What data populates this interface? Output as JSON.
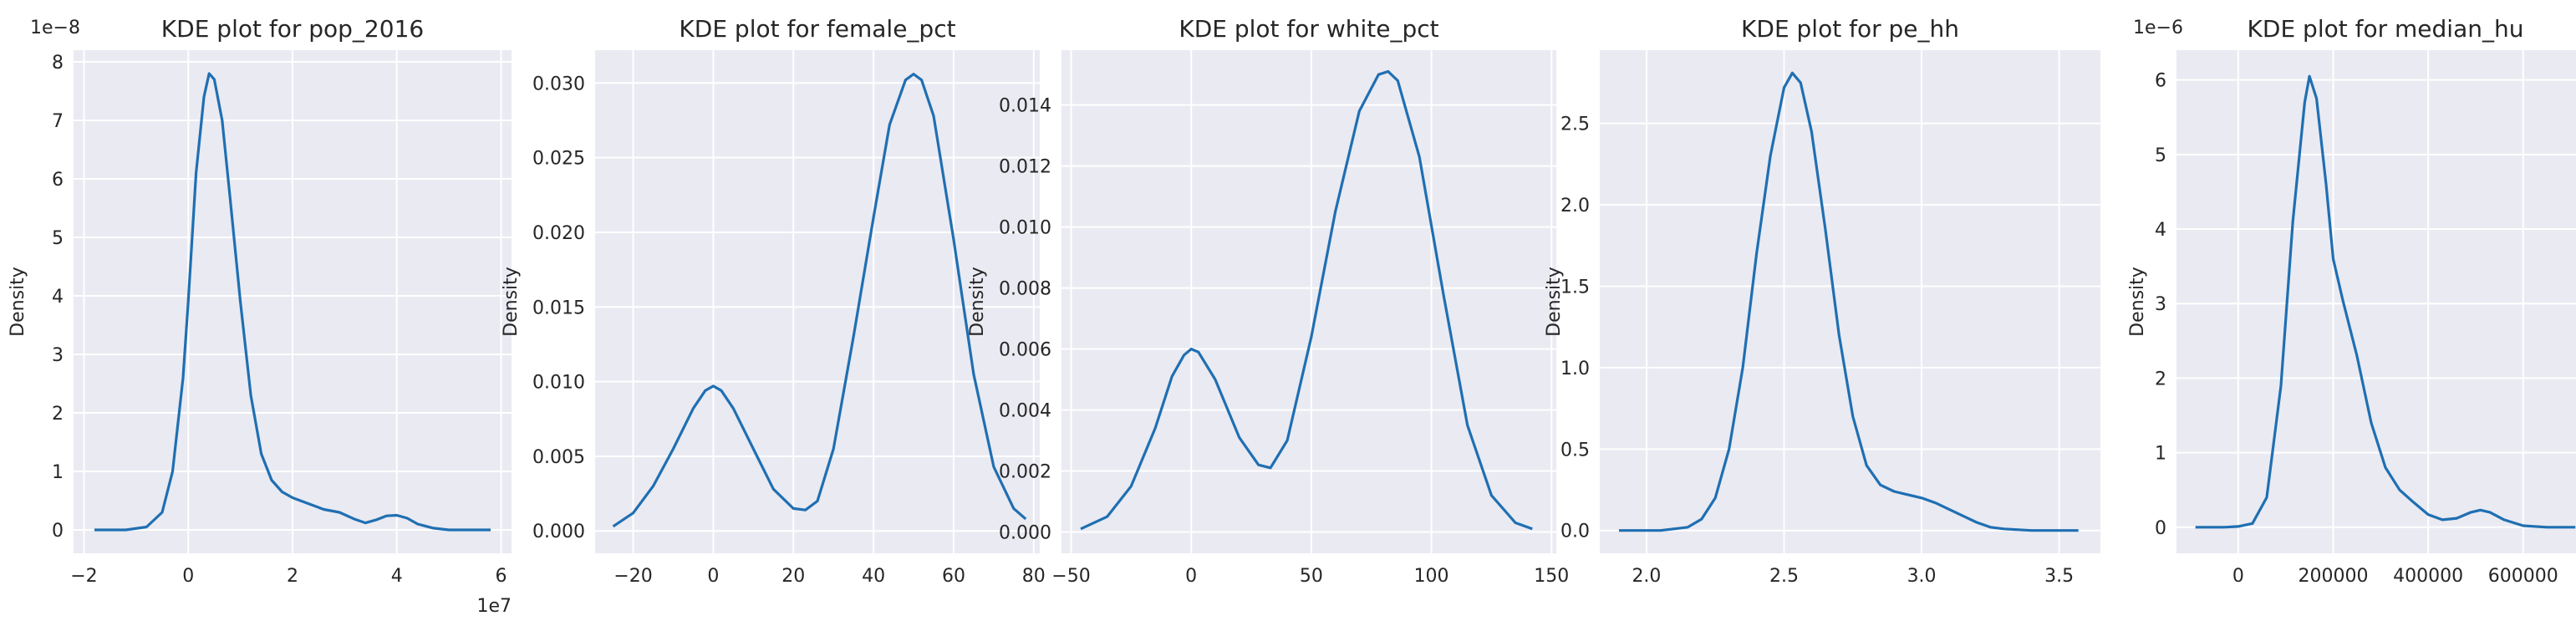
{
  "chart_data": [
    {
      "type": "line",
      "title": "KDE plot for pop_2016",
      "xlabel": "",
      "ylabel": "Density",
      "x_multiplier": "1e7",
      "y_multiplier": "1e−8",
      "xlim": [
        -2.2,
        6.2
      ],
      "ylim": [
        -0.4,
        8.2
      ],
      "xticks": [
        -2,
        0,
        2,
        4,
        6
      ],
      "xtick_labels": [
        "−2",
        "0",
        "2",
        "4",
        "6"
      ],
      "yticks": [
        0,
        1,
        2,
        3,
        4,
        5,
        6,
        7,
        8
      ],
      "ytick_labels": [
        "0",
        "1",
        "2",
        "3",
        "4",
        "5",
        "6",
        "7",
        "8"
      ],
      "grid": true,
      "series": [
        {
          "x": [
            -1.8,
            -1.2,
            -0.8,
            -0.5,
            -0.3,
            -0.1,
            0.0,
            0.15,
            0.3,
            0.4,
            0.5,
            0.65,
            0.8,
            1.0,
            1.2,
            1.4,
            1.6,
            1.8,
            2.0,
            2.3,
            2.6,
            2.9,
            3.2,
            3.4,
            3.6,
            3.8,
            4.0,
            4.2,
            4.4,
            4.7,
            5.0,
            5.4,
            5.8
          ],
          "y": [
            0.0,
            0.0,
            0.05,
            0.3,
            1.0,
            2.6,
            3.9,
            6.1,
            7.4,
            7.8,
            7.7,
            7.0,
            5.7,
            3.9,
            2.3,
            1.3,
            0.85,
            0.65,
            0.55,
            0.45,
            0.35,
            0.3,
            0.18,
            0.12,
            0.17,
            0.24,
            0.25,
            0.2,
            0.1,
            0.03,
            0.0,
            0.0,
            0.0
          ]
        }
      ]
    },
    {
      "type": "line",
      "title": "KDE plot for female_pct",
      "xlabel": "",
      "ylabel": "Density",
      "xlim": [
        -29.5,
        81.5
      ],
      "ylim": [
        -0.0015,
        0.0322
      ],
      "xticks": [
        -20,
        0,
        20,
        40,
        60,
        80
      ],
      "xtick_labels": [
        "−20",
        "0",
        "20",
        "40",
        "60",
        "80"
      ],
      "yticks": [
        0,
        0.005,
        0.01,
        0.015,
        0.02,
        0.025,
        0.03
      ],
      "ytick_labels": [
        "0.000",
        "0.005",
        "0.010",
        "0.015",
        "0.020",
        "0.025",
        "0.030"
      ],
      "grid": true,
      "series": [
        {
          "x": [
            -25,
            -20,
            -15,
            -10,
            -5,
            -2,
            0,
            2,
            5,
            10,
            15,
            20,
            23,
            26,
            30,
            35,
            40,
            44,
            48,
            50,
            52,
            55,
            60,
            65,
            70,
            75,
            78
          ],
          "y": [
            0.0003,
            0.0012,
            0.003,
            0.0055,
            0.0082,
            0.0094,
            0.0097,
            0.0094,
            0.0082,
            0.0055,
            0.0028,
            0.0015,
            0.0014,
            0.002,
            0.0055,
            0.013,
            0.021,
            0.0272,
            0.0302,
            0.0306,
            0.0302,
            0.0278,
            0.0195,
            0.0105,
            0.0043,
            0.0015,
            0.0008
          ]
        }
      ]
    },
    {
      "type": "line",
      "title": "KDE plot for white_pct",
      "xlabel": "",
      "ylabel": "Density",
      "xlim": [
        -54,
        152
      ],
      "ylim": [
        -0.0007,
        0.0158
      ],
      "xticks": [
        -50,
        0,
        50,
        100,
        150
      ],
      "xtick_labels": [
        "−50",
        "0",
        "50",
        "100",
        "150"
      ],
      "yticks": [
        0,
        0.002,
        0.004,
        0.006,
        0.008,
        0.01,
        0.012,
        0.014
      ],
      "ytick_labels": [
        "0.000",
        "0.002",
        "0.004",
        "0.006",
        "0.008",
        "0.010",
        "0.012",
        "0.014"
      ],
      "grid": true,
      "series": [
        {
          "x": [
            -46,
            -35,
            -25,
            -15,
            -8,
            -3,
            0,
            3,
            10,
            20,
            28,
            33,
            40,
            50,
            60,
            70,
            78,
            82,
            86,
            95,
            105,
            115,
            125,
            135,
            142
          ],
          "y": [
            0.0001,
            0.0005,
            0.0015,
            0.0034,
            0.0051,
            0.0058,
            0.006,
            0.0059,
            0.005,
            0.0031,
            0.0022,
            0.0021,
            0.003,
            0.0064,
            0.0105,
            0.0138,
            0.015,
            0.0151,
            0.0148,
            0.0123,
            0.0078,
            0.0035,
            0.0012,
            0.0003,
            0.0001
          ]
        }
      ]
    },
    {
      "type": "line",
      "title": "KDE plot for pe_hh",
      "xlabel": "",
      "ylabel": "Density",
      "xlim": [
        1.83,
        3.65
      ],
      "ylim": [
        -0.14,
        2.95
      ],
      "xticks": [
        2.0,
        2.5,
        3.0,
        3.5
      ],
      "xtick_labels": [
        "2.0",
        "2.5",
        "3.0",
        "3.5"
      ],
      "yticks": [
        0,
        0.5,
        1.0,
        1.5,
        2.0,
        2.5
      ],
      "ytick_labels": [
        "0.0",
        "0.5",
        "1.0",
        "1.5",
        "2.0",
        "2.5"
      ],
      "grid": true,
      "series": [
        {
          "x": [
            1.9,
            2.05,
            2.15,
            2.2,
            2.25,
            2.3,
            2.35,
            2.4,
            2.45,
            2.5,
            2.53,
            2.56,
            2.6,
            2.65,
            2.7,
            2.75,
            2.8,
            2.85,
            2.9,
            2.95,
            3.0,
            3.05,
            3.1,
            3.15,
            3.2,
            3.25,
            3.3,
            3.4,
            3.57
          ],
          "y": [
            0.0,
            0.0,
            0.02,
            0.07,
            0.2,
            0.5,
            1.0,
            1.7,
            2.3,
            2.72,
            2.81,
            2.75,
            2.45,
            1.85,
            1.2,
            0.7,
            0.4,
            0.28,
            0.24,
            0.22,
            0.2,
            0.17,
            0.13,
            0.09,
            0.05,
            0.02,
            0.01,
            0.0,
            0.0
          ]
        }
      ]
    },
    {
      "type": "line",
      "title": "KDE plot for median_hu",
      "xlabel": "",
      "ylabel": "Density",
      "y_multiplier": "1e−6",
      "xlim": [
        -130000,
        750000
      ],
      "ylim": [
        -0.35,
        6.4
      ],
      "xticks": [
        0,
        200000,
        400000,
        600000
      ],
      "xtick_labels": [
        "0",
        "200000",
        "400000",
        "600000"
      ],
      "yticks": [
        0,
        1,
        2,
        3,
        4,
        5,
        6
      ],
      "ytick_labels": [
        "0",
        "1",
        "2",
        "3",
        "4",
        "5",
        "6"
      ],
      "grid": true,
      "series": [
        {
          "x": [
            -90000,
            -30000,
            0,
            30000,
            60000,
            90000,
            115000,
            140000,
            150000,
            165000,
            185000,
            200000,
            220000,
            250000,
            280000,
            310000,
            340000,
            370000,
            400000,
            430000,
            460000,
            490000,
            510000,
            530000,
            560000,
            600000,
            650000,
            710000
          ],
          "y": [
            0.0,
            0.0,
            0.01,
            0.05,
            0.4,
            1.9,
            4.1,
            5.7,
            6.05,
            5.75,
            4.6,
            3.6,
            3.05,
            2.3,
            1.4,
            0.8,
            0.5,
            0.33,
            0.17,
            0.1,
            0.12,
            0.2,
            0.23,
            0.2,
            0.1,
            0.02,
            0.0,
            0.0
          ]
        }
      ]
    }
  ],
  "style": {
    "line_color": "#1f6fb2",
    "plot_background": "#eaeaf2",
    "grid_color": "#ffffff",
    "text_color": "#262626"
  }
}
